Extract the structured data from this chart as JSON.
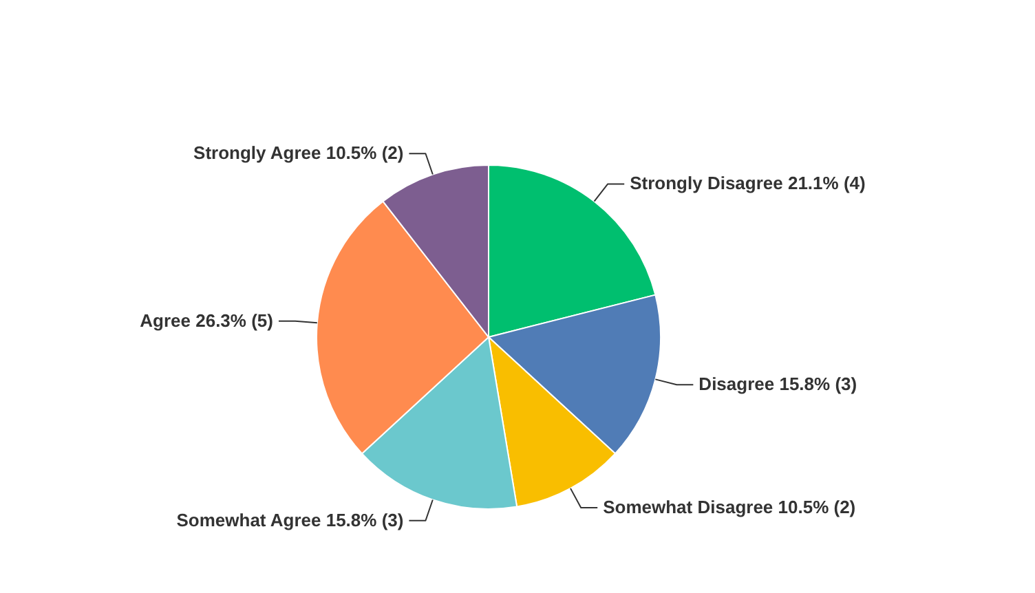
{
  "chart_data": {
    "type": "pie",
    "categories": [
      "Strongly Disagree",
      "Disagree",
      "Somewhat Disagree",
      "Somewhat Agree",
      "Agree",
      "Strongly Agree"
    ],
    "values": [
      4,
      3,
      2,
      3,
      5,
      2
    ],
    "value_labels": [
      "21.1% (4)",
      "15.8% (3)",
      "10.5% (2)",
      "15.8% (3)",
      "26.3% (5)",
      "10.5% (2)"
    ],
    "colors": [
      "#00bf6f",
      "#507cb6",
      "#f9be00",
      "#6bc8cd",
      "#ff8b4f",
      "#7d5e90"
    ]
  }
}
